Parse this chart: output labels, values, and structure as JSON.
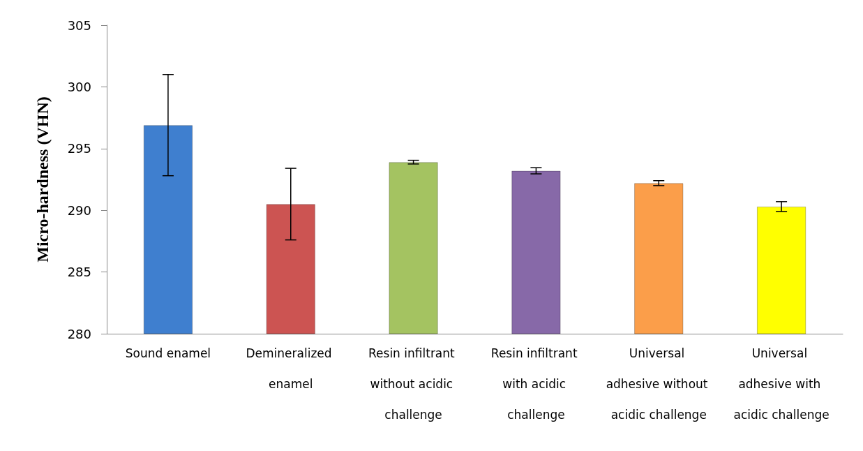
{
  "chart_data": {
    "type": "bar",
    "ylabel": "Micro-hardness (VHN)",
    "categories": [
      "Sound enamel",
      "Demineralized enamel",
      "Resin infiltrant without acidic challenge",
      "Resin infiltrant with acidic challenge",
      "Universal adhesive without acidic challenge",
      "Universal adhesive with acidic challenge"
    ],
    "values": [
      296.9,
      290.5,
      293.9,
      293.2,
      292.2,
      290.3
    ],
    "errors": [
      4.1,
      2.9,
      0.15,
      0.25,
      0.2,
      0.4
    ],
    "colors": [
      "#3f7fcf",
      "#cc5452",
      "#a4c361",
      "#8769a8",
      "#fb9e4a",
      "#ffff00"
    ],
    "ylim": [
      280,
      305
    ],
    "yticks": [
      280,
      285,
      290,
      295,
      300,
      305
    ],
    "grid": false
  }
}
